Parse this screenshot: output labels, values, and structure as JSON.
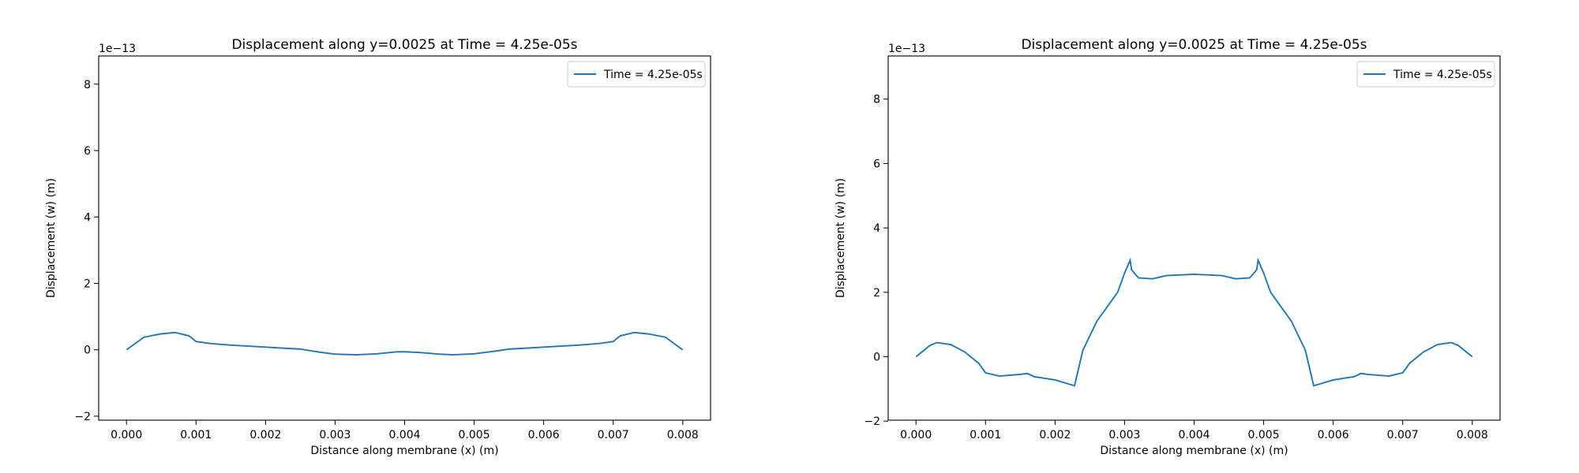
{
  "chart_data": [
    {
      "type": "line",
      "title": "Displacement along y=0.0025 at Time = 4.25e-05s",
      "x_label": "Distance along membrane (x) (m)",
      "y_label": "Displacement (w) (m)",
      "y_offset_label": "1e−13",
      "x": [
        0,
        0.00025,
        0.0005,
        0.0007,
        0.0009,
        0.001,
        0.0012,
        0.0015,
        0.002,
        0.0025,
        0.0028,
        0.003,
        0.0033,
        0.0036,
        0.0039,
        0.004,
        0.0042,
        0.0045,
        0.0047,
        0.005,
        0.0053,
        0.0055,
        0.006,
        0.0065,
        0.0068,
        0.007,
        0.0071,
        0.0073,
        0.0075,
        0.00775,
        0.008
      ],
      "series": [
        {
          "name": "Time = 4.25e-05s",
          "color": "#1f77b4",
          "values": [
            0,
            0.38,
            0.48,
            0.52,
            0.42,
            0.25,
            0.19,
            0.14,
            0.08,
            0.02,
            -0.08,
            -0.13,
            -0.15,
            -0.12,
            -0.06,
            -0.06,
            -0.08,
            -0.13,
            -0.15,
            -0.12,
            -0.04,
            0.02,
            0.08,
            0.14,
            0.19,
            0.25,
            0.42,
            0.52,
            0.48,
            0.38,
            0
          ]
        }
      ],
      "xlim": [
        -0.0004,
        0.0084
      ],
      "ylim": [
        -2.12,
        8.85
      ],
      "xticks": [
        {
          "value": 0,
          "label": "0.000"
        },
        0.001,
        0.002,
        0.003,
        0.004,
        0.005,
        0.006,
        0.007,
        0.008
      ],
      "yticks": [
        {
          "value": -2,
          "label": "−2"
        },
        0,
        2,
        4,
        6,
        8
      ],
      "legend": "upper right"
    },
    {
      "type": "line",
      "title": "Displacement along y=0.0025 at Time = 4.25e-05s",
      "x_label": "Distance along membrane (x) (m)",
      "y_label": "Displacement (w) (m)",
      "y_offset_label": "1e−13",
      "x": [
        0,
        0.0002,
        0.0003,
        0.0005,
        0.0007,
        0.0009,
        0.001,
        0.0012,
        0.0015,
        0.0016,
        0.0017,
        0.002,
        0.0022,
        0.00228,
        0.0024,
        0.0026,
        0.0028,
        0.0029,
        0.003,
        0.00308,
        0.0031,
        0.0032,
        0.0034,
        0.0036,
        0.004,
        0.0044,
        0.0046,
        0.0048,
        0.0049,
        0.00492,
        0.005,
        0.0051,
        0.0052,
        0.0054,
        0.0056,
        0.00572,
        0.0058,
        0.006,
        0.0063,
        0.0064,
        0.0065,
        0.0068,
        0.007,
        0.0071,
        0.0073,
        0.0075,
        0.0077,
        0.0078,
        0.008
      ],
      "series": [
        {
          "name": "Time = 4.25e-05s",
          "color": "#1f77b4",
          "values": [
            0,
            0.35,
            0.44,
            0.38,
            0.15,
            -0.2,
            -0.5,
            -0.6,
            -0.55,
            -0.52,
            -0.62,
            -0.72,
            -0.85,
            -0.9,
            0.2,
            1.1,
            1.7,
            2.0,
            2.6,
            3.0,
            2.7,
            2.45,
            2.42,
            2.52,
            2.56,
            2.52,
            2.42,
            2.45,
            2.7,
            3.0,
            2.6,
            2.0,
            1.7,
            1.1,
            0.2,
            -0.9,
            -0.85,
            -0.72,
            -0.62,
            -0.52,
            -0.55,
            -0.6,
            -0.5,
            -0.2,
            0.15,
            0.38,
            0.44,
            0.35,
            0
          ]
        }
      ],
      "xlim": [
        -0.0004,
        0.0084
      ],
      "ylim": [
        -1.97,
        9.34
      ],
      "xticks": [
        {
          "value": 0,
          "label": "0.000"
        },
        0.001,
        0.002,
        0.003,
        0.004,
        0.005,
        0.006,
        0.007,
        0.008
      ],
      "yticks": [
        {
          "value": -2,
          "label": "−2"
        },
        0,
        2,
        4,
        6,
        8
      ],
      "legend": "upper right"
    }
  ]
}
